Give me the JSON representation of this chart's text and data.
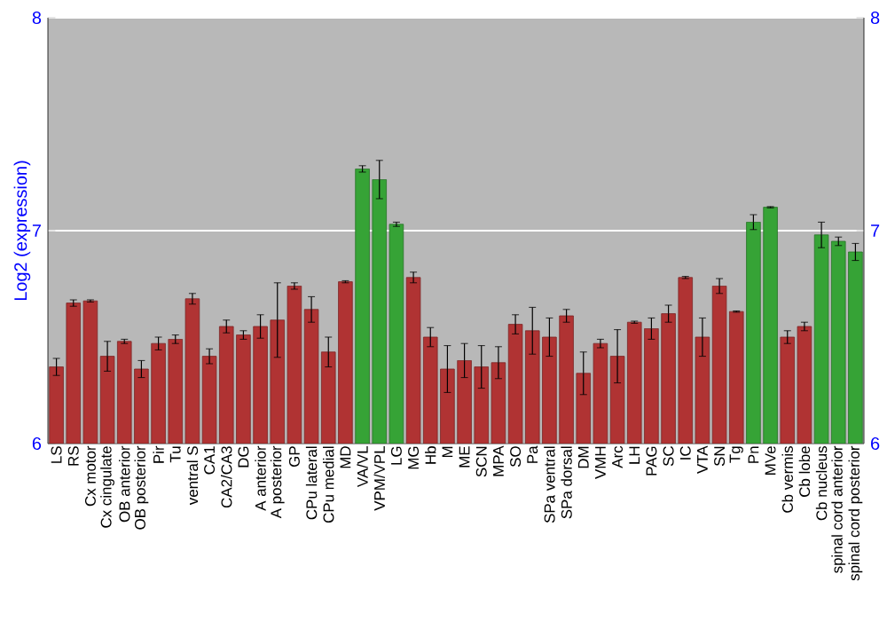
{
  "chart_data": {
    "type": "bar",
    "ylabel": "Log2 (expression)",
    "categories": [
      "LS",
      "RS",
      "Cx motor",
      "Cx cingulate",
      "OB anterior",
      "OB posterior",
      "Pir",
      "Tu",
      "ventral S",
      "CA1",
      "CA2/CA3",
      "DG",
      "A anterior",
      "A posterior",
      "GP",
      "CPu lateral",
      "CPu medial",
      "MD",
      "VA/VL",
      "VPM/VPL",
      "LG",
      "MG",
      "Hb",
      "M",
      "ME",
      "SCN",
      "MPA",
      "SO",
      "Pa",
      "SPa ventral",
      "SPa dorsal",
      "DM",
      "VMH",
      "Arc",
      "LH",
      "PAG",
      "SC",
      "IC",
      "VTA",
      "SN",
      "Tg",
      "Pn",
      "MVe",
      "Cb vermis",
      "Cb lobe",
      "Cb nucleus",
      "spinal cord anterior",
      "spinal cord posterior"
    ],
    "values": [
      6.36,
      6.66,
      6.67,
      6.41,
      6.48,
      6.35,
      6.47,
      6.49,
      6.68,
      6.41,
      6.55,
      6.51,
      6.55,
      6.58,
      6.74,
      6.63,
      6.43,
      6.76,
      7.29,
      7.24,
      7.03,
      6.78,
      6.5,
      6.35,
      6.39,
      6.36,
      6.38,
      6.56,
      6.53,
      6.5,
      6.6,
      6.33,
      6.47,
      6.41,
      6.57,
      6.54,
      6.61,
      6.78,
      6.5,
      6.74,
      6.62,
      7.04,
      7.11,
      6.5,
      6.55,
      6.98,
      6.95,
      6.9
    ],
    "errors": [
      0.04,
      0.015,
      0.005,
      0.07,
      0.01,
      0.04,
      0.03,
      0.02,
      0.025,
      0.035,
      0.03,
      0.02,
      0.055,
      0.175,
      0.015,
      0.06,
      0.07,
      0.005,
      0.015,
      0.09,
      0.01,
      0.025,
      0.045,
      0.11,
      0.08,
      0.1,
      0.075,
      0.045,
      0.11,
      0.09,
      0.03,
      0.1,
      0.02,
      0.125,
      0.005,
      0.05,
      0.04,
      0.005,
      0.09,
      0.035,
      0.003,
      0.035,
      0.003,
      0.03,
      0.02,
      0.06,
      0.02,
      0.04
    ],
    "colors": [
      "#b03333",
      "#b03333",
      "#b03333",
      "#b03333",
      "#b03333",
      "#b03333",
      "#b03333",
      "#b03333",
      "#b03333",
      "#b03333",
      "#b03333",
      "#b03333",
      "#b03333",
      "#b03333",
      "#b03333",
      "#b03333",
      "#b03333",
      "#b03333",
      "#36a336",
      "#36a336",
      "#36a336",
      "#b03333",
      "#b03333",
      "#b03333",
      "#b03333",
      "#b03333",
      "#b03333",
      "#b03333",
      "#b03333",
      "#b03333",
      "#b03333",
      "#b03333",
      "#b03333",
      "#b03333",
      "#b03333",
      "#b03333",
      "#b03333",
      "#b03333",
      "#b03333",
      "#b03333",
      "#b03333",
      "#36a336",
      "#36a336",
      "#b03333",
      "#b03333",
      "#36a336",
      "#36a336",
      "#36a336"
    ],
    "ylim": [
      6,
      8
    ],
    "yticks": [
      6,
      7,
      8
    ],
    "y2lim": [
      6,
      8
    ],
    "y2ticks": [
      6,
      7,
      8
    ],
    "grid": "y"
  }
}
